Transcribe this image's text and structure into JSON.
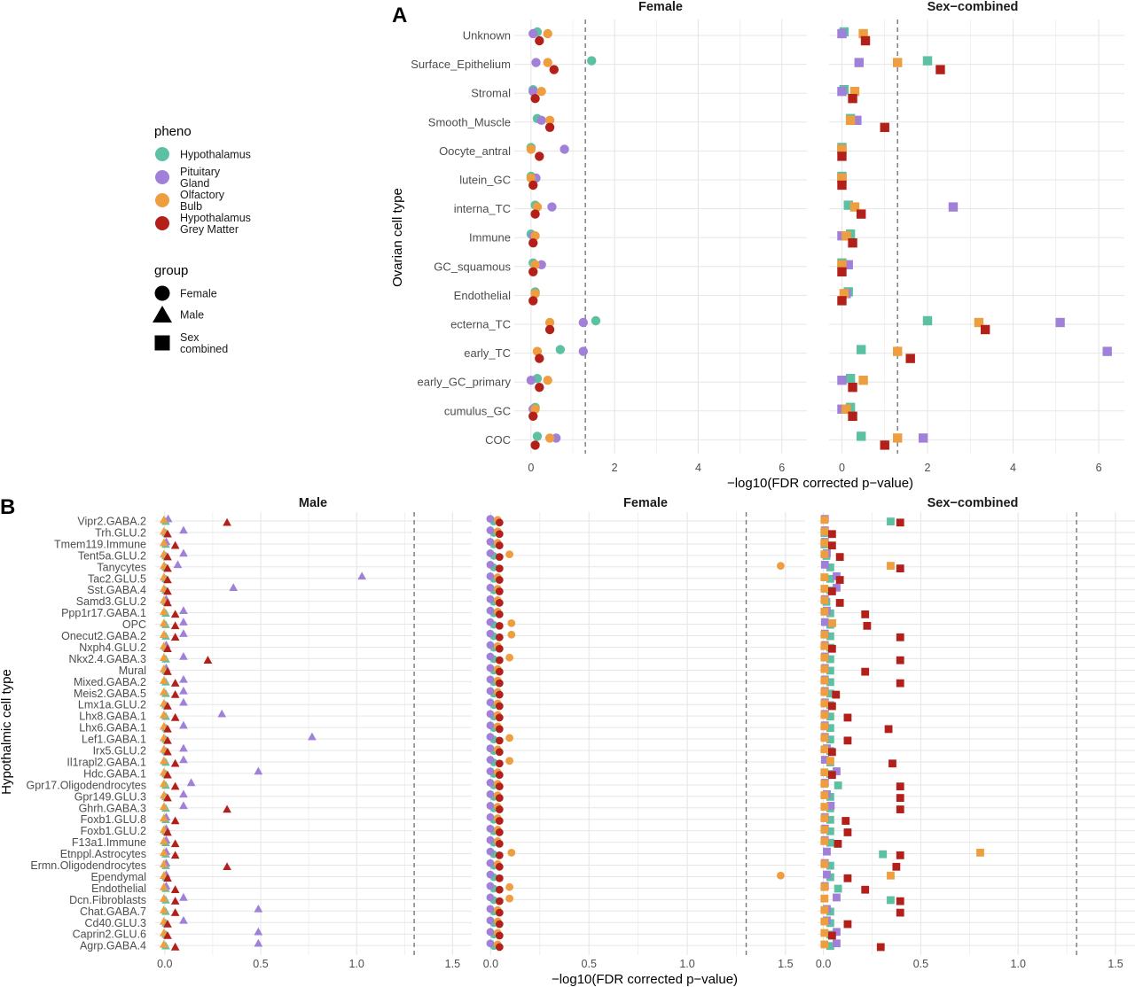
{
  "colors": {
    "Hypothalamus": "#5CC1A3",
    "Pituitary Gland": "#A080D8",
    "Olfactory Bulb": "#EE9E3E",
    "Hypothalamus Grey Matter": "#B3201A",
    "grid": "#e6e6e6",
    "threshold_line": "#777777"
  },
  "legend": {
    "pheno_title": "pheno",
    "pheno_items": [
      {
        "key": "Hypothalamus",
        "lines": [
          "Hypothalamus"
        ]
      },
      {
        "key": "Pituitary Gland",
        "lines": [
          "Pituitary",
          "Gland"
        ]
      },
      {
        "key": "Olfactory Bulb",
        "lines": [
          "Olfactory",
          "Bulb"
        ]
      },
      {
        "key": "Hypothalamus Grey Matter",
        "lines": [
          "Hypothalamus",
          "Grey Matter"
        ]
      }
    ],
    "group_title": "group",
    "group_items": [
      {
        "shape": "circle",
        "lines": [
          "Female"
        ]
      },
      {
        "shape": "triangle",
        "lines": [
          "Male"
        ]
      },
      {
        "shape": "square",
        "lines": [
          "Sex",
          "combined"
        ]
      }
    ]
  },
  "chart_data": [
    {
      "panel_tag": "A",
      "type": "scatter",
      "ylabel": "Ovarian cell type",
      "xlabel": "−log10(FDR corrected p−value)",
      "threshold": 1.3,
      "series_order": [
        "Hypothalamus",
        "Pituitary Gland",
        "Olfactory Bulb",
        "Hypothalamus Grey Matter"
      ],
      "categories": [
        "Unknown",
        "Surface_Epithelium",
        "Stromal",
        "Smooth_Muscle",
        "Oocyte_antral",
        "lutein_GC",
        "interna_TC",
        "Immune",
        "GC_squamous",
        "Endothelial",
        "ecterna_TC",
        "early_TC",
        "early_GC_primary",
        "cumulus_GC",
        "COC"
      ],
      "facets": [
        {
          "title": "Female",
          "shape": "circle",
          "xlim": [
            -0.4,
            6.6
          ],
          "xticks": [
            0,
            2,
            4,
            6
          ],
          "values": {
            "Hypothalamus": [
              0.15,
              1.45,
              0.05,
              0.15,
              0.0,
              0.0,
              0.1,
              0.0,
              0.05,
              0.1,
              1.55,
              0.7,
              0.15,
              0.1,
              0.15
            ],
            "Pituitary Gland": [
              0.05,
              0.12,
              0.05,
              0.25,
              0.8,
              0.12,
              0.5,
              0.05,
              0.25,
              0.1,
              1.25,
              1.25,
              0.0,
              0.05,
              0.6
            ],
            "Olfactory Bulb": [
              0.4,
              0.4,
              0.25,
              0.45,
              0.0,
              0.0,
              0.15,
              0.1,
              0.1,
              0.1,
              0.45,
              0.15,
              0.4,
              0.1,
              0.45
            ],
            "Hypothalamus Grey Matter": [
              0.2,
              0.55,
              0.1,
              0.45,
              0.2,
              0.05,
              0.1,
              0.05,
              0.05,
              0.05,
              0.45,
              0.2,
              0.2,
              0.05,
              0.1
            ]
          }
        },
        {
          "title": "Sex−combined",
          "shape": "square",
          "xlim": [
            -0.3,
            6.6
          ],
          "xticks": [
            0,
            2,
            4,
            6
          ],
          "values": {
            "Hypothalamus": [
              0.05,
              2.0,
              0.05,
              0.2,
              0.0,
              0.0,
              0.15,
              0.2,
              0.0,
              0.15,
              2.0,
              0.45,
              0.2,
              0.2,
              0.45
            ],
            "Pituitary Gland": [
              0.0,
              0.4,
              0.0,
              0.35,
              0.0,
              0.0,
              2.6,
              0.0,
              0.15,
              0.1,
              5.1,
              6.2,
              0.0,
              0.0,
              1.9
            ],
            "Olfactory Bulb": [
              0.5,
              1.3,
              0.3,
              0.2,
              0.0,
              0.0,
              0.3,
              0.1,
              0.0,
              0.05,
              3.2,
              1.3,
              0.5,
              0.1,
              1.3
            ],
            "Hypothalamus Grey Matter": [
              0.55,
              2.3,
              0.25,
              1.0,
              0.0,
              0.0,
              0.45,
              0.25,
              0.0,
              0.0,
              3.35,
              1.6,
              0.25,
              0.25,
              1.0
            ]
          }
        }
      ]
    },
    {
      "panel_tag": "B",
      "type": "scatter",
      "ylabel": "Hypothalmic cell type",
      "xlabel": "−log10(FDR corrected p−value)",
      "threshold": 1.3,
      "series_order": [
        "Hypothalamus",
        "Pituitary Gland",
        "Olfactory Bulb",
        "Hypothalamus Grey Matter"
      ],
      "categories": [
        "Vipr2.GABA.2",
        "Trh.GLU.2",
        "Tmem119.Immune",
        "Tent5a.GLU.2",
        "Tanycytes",
        "Tac2.GLU.5",
        "Sst.GABA.4",
        "Samd3.GLU.2",
        "Ppp1r17.GABA.1",
        "OPC",
        "Onecut2.GABA.2",
        "Nxph4.GLU.2",
        "Nkx2.4.GABA.3",
        "Mural",
        "Mixed.GABA.2",
        "Meis2.GABA.5",
        "Lmx1a.GLU.2",
        "Lhx8.GABA.1",
        "Lhx6.GABA.1",
        "Lef1.GABA.1",
        "Irx5.GLU.2",
        "Il1rapl2.GABA.1",
        "Hdc.GABA.1",
        "Gpr17.Oligodendrocytes",
        "Gpr149.GLU.3",
        "Ghrh.GABA.3",
        "Foxb1.GLU.8",
        "Foxb1.GLU.2",
        "F13a1.Immune",
        "Etnppl.Astrocytes",
        "Ermn.Oligodendrocytes",
        "Ependymal",
        "Endothelial",
        "Dcn.Fibroblasts",
        "Chat.GABA.7",
        "Cd40.GLU.3",
        "Caprin2.GLU.6",
        "Agrp.GABA.4"
      ],
      "facets": [
        {
          "title": "Male",
          "shape": "triangle",
          "xlim": [
            -0.05,
            1.6
          ],
          "xticks": [
            0,
            0.5,
            1,
            1.5
          ],
          "values": {
            "Hypothalamus": [
              0.01,
              0.01,
              0.01,
              0.01,
              0.01,
              0.01,
              0.01,
              0.01,
              0.01,
              0.01,
              0.01,
              0.01,
              0.01,
              0.01,
              0.01,
              0.01,
              0.01,
              0.01,
              0.01,
              0.01,
              0.01,
              0.01,
              0.01,
              0.01,
              0.01,
              0.01,
              0.01,
              0.01,
              0.01,
              0.01,
              0.01,
              0.01,
              0.01,
              0.01,
              0.01,
              0.01,
              0.01,
              0.01
            ],
            "Pituitary Gland": [
              0.02,
              0.1,
              0.01,
              0.1,
              0.07,
              1.03,
              0.36,
              0.01,
              0.1,
              0.1,
              0.1,
              0.01,
              0.1,
              0.01,
              0.1,
              0.1,
              0.1,
              0.3,
              0.1,
              0.77,
              0.1,
              0.1,
              0.49,
              0.14,
              0.1,
              0.1,
              0.01,
              0.01,
              0.01,
              0.01,
              0.01,
              0.01,
              0.01,
              0.1,
              0.49,
              0.1,
              0.49,
              0.49
            ],
            "Olfactory Bulb": [
              0.0,
              0.0,
              0.0,
              0.0,
              0.0,
              0.0,
              0.0,
              0.0,
              0.0,
              0.0,
              0.0,
              0.0,
              0.0,
              0.0,
              0.0,
              0.0,
              0.0,
              0.0,
              0.0,
              0.0,
              0.0,
              0.0,
              0.0,
              0.0,
              0.0,
              0.0,
              0.0,
              0.0,
              0.0,
              0.0,
              0.0,
              0.0,
              0.0,
              0.0,
              0.0,
              0.0,
              0.0,
              0.0
            ],
            "Hypothalamus Grey Matter": [
              0.32,
              0.01,
              0.05,
              0.01,
              0.01,
              0.01,
              0.01,
              0.01,
              0.05,
              0.05,
              0.05,
              0.01,
              0.22,
              0.01,
              0.05,
              0.05,
              0.01,
              0.05,
              0.01,
              0.01,
              0.01,
              0.05,
              0.01,
              0.05,
              0.01,
              0.32,
              0.05,
              0.01,
              0.05,
              0.05,
              0.32,
              0.01,
              0.05,
              0.05,
              0.05,
              0.01,
              0.01,
              0.05
            ]
          }
        },
        {
          "title": "Female",
          "shape": "circle",
          "xlim": [
            -0.02,
            1.6
          ],
          "xticks": [
            0,
            0.5,
            1,
            1.5
          ],
          "values": {
            "Hypothalamus": [
              0.02,
              0.02,
              0.02,
              0.02,
              0.02,
              0.02,
              0.02,
              0.02,
              0.02,
              0.02,
              0.02,
              0.02,
              0.02,
              0.02,
              0.02,
              0.02,
              0.02,
              0.02,
              0.02,
              0.02,
              0.02,
              0.02,
              0.02,
              0.02,
              0.02,
              0.02,
              0.02,
              0.02,
              0.02,
              0.02,
              0.02,
              0.02,
              0.02,
              0.02,
              0.02,
              0.02,
              0.02,
              0.02
            ],
            "Pituitary Gland": [
              0.0,
              0.0,
              0.0,
              0.0,
              0.0,
              0.0,
              0.0,
              0.0,
              0.0,
              0.0,
              0.0,
              0.0,
              0.0,
              0.0,
              0.0,
              0.0,
              0.0,
              0.0,
              0.0,
              0.0,
              0.0,
              0.0,
              0.0,
              0.0,
              0.0,
              0.0,
              0.0,
              0.0,
              0.0,
              0.0,
              0.0,
              0.0,
              0.0,
              0.0,
              0.0,
              0.0,
              0.0,
              0.0
            ],
            "Olfactory Bulb": [
              0.04,
              0.04,
              0.04,
              0.1,
              1.48,
              0.04,
              0.04,
              0.04,
              0.04,
              0.11,
              0.11,
              0.04,
              0.1,
              0.04,
              0.04,
              0.04,
              0.04,
              0.04,
              0.04,
              0.1,
              0.04,
              0.1,
              0.04,
              0.04,
              0.04,
              0.04,
              0.04,
              0.04,
              0.04,
              0.11,
              0.04,
              1.48,
              0.1,
              0.1,
              0.04,
              0.04,
              0.04,
              0.04
            ],
            "Hypothalamus Grey Matter": [
              0.04,
              0.04,
              0.04,
              0.04,
              0.04,
              0.04,
              0.04,
              0.04,
              0.04,
              0.04,
              0.04,
              0.04,
              0.04,
              0.04,
              0.04,
              0.04,
              0.04,
              0.04,
              0.04,
              0.04,
              0.04,
              0.04,
              0.04,
              0.04,
              0.04,
              0.04,
              0.04,
              0.04,
              0.04,
              0.04,
              0.04,
              0.04,
              0.04,
              0.04,
              0.04,
              0.04,
              0.04,
              0.04
            ]
          }
        },
        {
          "title": "Sex−combined",
          "shape": "square",
          "xlim": [
            -0.03,
            1.6
          ],
          "xticks": [
            0,
            0.5,
            1,
            1.5
          ],
          "values": {
            "Hypothalamus": [
              0.35,
              0.01,
              0.01,
              0.02,
              0.04,
              0.04,
              0.04,
              0.02,
              0.04,
              0.04,
              0.04,
              0.04,
              0.04,
              0.04,
              0.04,
              0.04,
              0.04,
              0.04,
              0.04,
              0.04,
              0.04,
              0.04,
              0.04,
              0.08,
              0.04,
              0.04,
              0.04,
              0.04,
              0.04,
              0.31,
              0.04,
              0.04,
              0.08,
              0.35,
              0.04,
              0.04,
              0.04,
              0.04
            ],
            "Pituitary Gland": [
              0.01,
              0.01,
              0.01,
              0.02,
              0.01,
              0.07,
              0.07,
              0.01,
              0.02,
              0.01,
              0.01,
              0.01,
              0.01,
              0.01,
              0.01,
              0.01,
              0.01,
              0.01,
              0.01,
              0.01,
              0.02,
              0.01,
              0.07,
              0.01,
              0.02,
              0.04,
              0.01,
              0.01,
              0.01,
              0.02,
              0.01,
              0.02,
              0.01,
              0.07,
              0.02,
              0.02,
              0.07,
              0.07
            ],
            "Olfactory Bulb": [
              0.01,
              0.01,
              0.01,
              0.01,
              0.35,
              0.01,
              0.01,
              0.01,
              0.01,
              0.05,
              0.01,
              0.01,
              0.01,
              0.01,
              0.01,
              0.01,
              0.01,
              0.01,
              0.01,
              0.01,
              0.01,
              0.04,
              0.01,
              0.01,
              0.01,
              0.01,
              0.01,
              0.01,
              0.01,
              0.81,
              0.01,
              0.35,
              0.01,
              0.01,
              0.01,
              0.01,
              0.01,
              0.01
            ],
            "Hypothalamus Grey Matter": [
              0.39,
              0.04,
              0.04,
              0.08,
              0.39,
              0.08,
              0.04,
              0.08,
              0.21,
              0.22,
              0.39,
              0.04,
              0.39,
              0.21,
              0.39,
              0.06,
              0.04,
              0.12,
              0.33,
              0.12,
              0.04,
              0.35,
              0.04,
              0.39,
              0.39,
              0.39,
              0.11,
              0.12,
              0.07,
              0.39,
              0.37,
              0.12,
              0.21,
              0.39,
              0.39,
              0.12,
              0.04,
              0.29
            ]
          }
        }
      ]
    }
  ]
}
